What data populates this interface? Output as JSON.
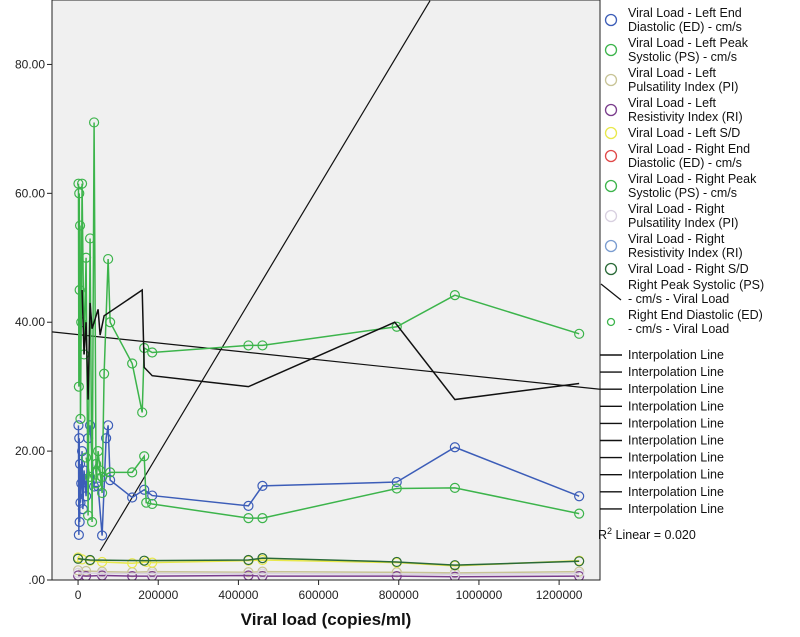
{
  "chart_data": {
    "type": "scatter",
    "title": "",
    "xlabel": "Viral load (copies/ml)",
    "ylabel": "",
    "xlim": [
      -65000,
      1302000
    ],
    "ylim": [
      0,
      90
    ],
    "x_ticks": [
      0,
      200000,
      400000,
      600000,
      800000,
      1000000,
      1200000
    ],
    "x_tick_labels": [
      "0",
      "200000",
      "400000",
      "600000",
      "800000",
      "1000000",
      "1200000"
    ],
    "y_ticks": [
      0,
      20,
      40,
      60,
      80
    ],
    "y_tick_labels": [
      ".00",
      "20.00",
      "40.00",
      "60.00",
      "80.00"
    ],
    "background": "#f0f0f0",
    "legend_position": "right",
    "series": [
      {
        "name": "Viral Load - Left End Diastolic (ED) - cm/s",
        "color": "#3c5db8",
        "marker": "circle",
        "connected": true,
        "points": [
          [
            1000,
            24
          ],
          [
            2000,
            7
          ],
          [
            3000,
            22
          ],
          [
            4000,
            9
          ],
          [
            5000,
            18
          ],
          [
            6000,
            12
          ],
          [
            8000,
            15
          ],
          [
            10000,
            20
          ],
          [
            12000,
            11
          ],
          [
            15000,
            17
          ],
          [
            20000,
            13
          ],
          [
            25000,
            22
          ],
          [
            30000,
            24
          ],
          [
            40000,
            14.5
          ],
          [
            50000,
            14.5
          ],
          [
            60000,
            6.9
          ],
          [
            70000,
            22
          ],
          [
            75000,
            24
          ],
          [
            80000,
            15.5
          ],
          [
            135000,
            12.8
          ],
          [
            165000,
            14
          ],
          [
            185000,
            13.1
          ],
          [
            425000,
            11.5
          ],
          [
            460000,
            14.6
          ],
          [
            795000,
            15.2
          ],
          [
            940000,
            20.6
          ],
          [
            1250000,
            13
          ]
        ]
      },
      {
        "name": "Viral Load - Left Peak Systolic (PS) - cm/s",
        "color": "#3cb44b",
        "marker": "circle",
        "connected": true,
        "points": [
          [
            1000,
            61.5
          ],
          [
            2000,
            30
          ],
          [
            3000,
            60
          ],
          [
            4000,
            45
          ],
          [
            5000,
            55
          ],
          [
            6000,
            25
          ],
          [
            8000,
            40
          ],
          [
            10000,
            61.5
          ],
          [
            15000,
            35
          ],
          [
            20000,
            50
          ],
          [
            25000,
            10
          ],
          [
            30000,
            53
          ],
          [
            35000,
            9
          ],
          [
            40000,
            71
          ],
          [
            45000,
            15
          ],
          [
            50000,
            20
          ],
          [
            55000,
            17
          ],
          [
            60000,
            13.5
          ],
          [
            65000,
            32
          ],
          [
            75000,
            49.8
          ],
          [
            80000,
            40
          ],
          [
            135000,
            33.6
          ],
          [
            160000,
            26
          ],
          [
            165000,
            36
          ],
          [
            185000,
            35.3
          ],
          [
            425000,
            36.4
          ],
          [
            460000,
            36.4
          ],
          [
            795000,
            39.3
          ],
          [
            940000,
            44.2
          ],
          [
            1250000,
            38.2
          ]
        ]
      },
      {
        "name": "Viral Load - Left Pulsatility Index (PI)",
        "color": "#c8c496",
        "marker": "circle",
        "connected": true,
        "points": [
          [
            0,
            1.5
          ],
          [
            20000,
            1.4
          ],
          [
            60000,
            1.3
          ],
          [
            135000,
            1.2
          ],
          [
            185000,
            1.3
          ],
          [
            425000,
            1.2
          ],
          [
            460000,
            1.3
          ],
          [
            795000,
            1.2
          ],
          [
            940000,
            1.1
          ],
          [
            1250000,
            1.3
          ]
        ]
      },
      {
        "name": "Viral Load - Left Resistivity Index (RI)",
        "color": "#7a3c8c",
        "marker": "circle",
        "connected": true,
        "points": [
          [
            0,
            0.7
          ],
          [
            20000,
            0.6
          ],
          [
            60000,
            0.7
          ],
          [
            135000,
            0.6
          ],
          [
            185000,
            0.6
          ],
          [
            425000,
            0.7
          ],
          [
            460000,
            0.6
          ],
          [
            795000,
            0.6
          ],
          [
            940000,
            0.5
          ],
          [
            1250000,
            0.6
          ]
        ]
      },
      {
        "name": "Viral Load - Left S/D",
        "color": "#e8e84a",
        "marker": "circle",
        "connected": true,
        "points": [
          [
            0,
            3.5
          ],
          [
            10000,
            3.2
          ],
          [
            30000,
            3
          ],
          [
            60000,
            2.8
          ],
          [
            135000,
            2.6
          ],
          [
            170000,
            2.8
          ],
          [
            185000,
            2.7
          ],
          [
            425000,
            3
          ],
          [
            460000,
            3.1
          ],
          [
            795000,
            2.7
          ],
          [
            940000,
            2.2
          ],
          [
            1250000,
            3
          ]
        ]
      },
      {
        "name": "Viral Load - Right End Diastolic (ED) - cm/s",
        "color": "#e04848",
        "marker": "circle",
        "connected": false,
        "points": []
      },
      {
        "name": "Viral Load - Right Peak Systolic (PS) - cm/s",
        "color": "#3cb44b",
        "marker": "circle",
        "connected": true,
        "points": [
          [
            20000,
            19
          ],
          [
            30000,
            16
          ],
          [
            45000,
            18
          ],
          [
            60000,
            16
          ],
          [
            80000,
            16.7
          ],
          [
            135000,
            16.7
          ],
          [
            165000,
            19.2
          ],
          [
            170000,
            12
          ],
          [
            185000,
            11.8
          ],
          [
            425000,
            9.6
          ],
          [
            460000,
            9.6
          ],
          [
            795000,
            14.2
          ],
          [
            940000,
            14.3
          ],
          [
            1250000,
            10.3
          ]
        ]
      },
      {
        "name": "Viral Load - Right Pulsatility Index (PI)",
        "color": "#d8d0e0",
        "marker": "circle",
        "connected": true,
        "points": [
          [
            0,
            1.1
          ],
          [
            60000,
            1.0
          ],
          [
            185000,
            1.0
          ],
          [
            460000,
            1.0
          ],
          [
            940000,
            0.9
          ],
          [
            1250000,
            1.0
          ]
        ]
      },
      {
        "name": "Viral Load - Right Resistivity Index (RI)",
        "color": "#7a9cd0",
        "marker": "circle",
        "connected": false,
        "points": []
      },
      {
        "name": "Viral Load - Right S/D",
        "color": "#2a6a38",
        "marker": "circle",
        "connected": true,
        "points": [
          [
            0,
            3.3
          ],
          [
            30000,
            3.1
          ],
          [
            165000,
            3
          ],
          [
            425000,
            3.1
          ],
          [
            460000,
            3.4
          ],
          [
            795000,
            2.8
          ],
          [
            940000,
            2.3
          ],
          [
            1250000,
            2.9
          ]
        ]
      },
      {
        "name": "Right Peak Systolic (PS) - cm/s - Viral Load",
        "color": "#111111",
        "marker": "none",
        "connected": true,
        "points": [
          [
            10000,
            45
          ],
          [
            15000,
            35
          ],
          [
            20000,
            40
          ],
          [
            25000,
            28
          ],
          [
            30000,
            43
          ],
          [
            35000,
            39
          ],
          [
            50000,
            42
          ],
          [
            55000,
            38
          ],
          [
            65000,
            41
          ],
          [
            160000,
            45
          ],
          [
            165000,
            33
          ],
          [
            185000,
            31.7
          ],
          [
            425000,
            30
          ],
          [
            790000,
            40
          ],
          [
            940000,
            28
          ],
          [
            1250000,
            30.5
          ]
        ]
      },
      {
        "name": "Right End Diastolic (ED) - cm/s - Viral Load",
        "color": "#3cb44b",
        "marker": "small-circle",
        "connected": false,
        "points": []
      }
    ],
    "fit_lines": [
      {
        "name": "Linear fit 1",
        "color": "#111111",
        "points": [
          [
            -65000,
            38.5
          ],
          [
            1302000,
            29.6
          ]
        ]
      },
      {
        "name": "Linear fit 2",
        "color": "#111111",
        "points": [
          [
            55000,
            4.5
          ],
          [
            878000,
            89.9
          ]
        ]
      }
    ],
    "interpolation_legend": [
      "Interpolation Line",
      "Interpolation Line",
      "Interpolation Line",
      "Interpolation Line",
      "Interpolation Line",
      "Interpolation Line",
      "Interpolation Line",
      "Interpolation Line",
      "Interpolation Line",
      "Interpolation Line"
    ],
    "r2_prefix": "R",
    "r2_sup": "2",
    "r2_text": " Linear = 0.020"
  }
}
